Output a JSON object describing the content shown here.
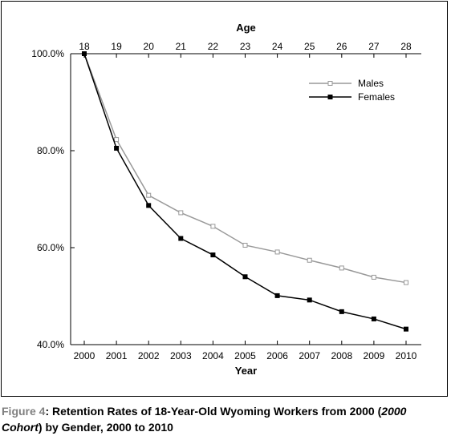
{
  "chart_data": {
    "type": "line",
    "title": "",
    "xlabel": "Year",
    "x2label": "Age",
    "ylabel": "",
    "x": [
      "2000",
      "2001",
      "2002",
      "2003",
      "2004",
      "2005",
      "2006",
      "2007",
      "2008",
      "2009",
      "2010"
    ],
    "x2": [
      "18",
      "19",
      "20",
      "21",
      "22",
      "23",
      "24",
      "25",
      "26",
      "27",
      "28"
    ],
    "yticks": [
      "40.0%",
      "60.0%",
      "80.0%",
      "100.0%"
    ],
    "ylim": [
      40,
      100
    ],
    "grid": false,
    "legend_position": "top-right",
    "series": [
      {
        "name": "Males",
        "values": [
          100.0,
          82.3,
          70.8,
          67.2,
          64.4,
          60.5,
          59.1,
          57.4,
          55.8,
          53.9,
          52.8
        ],
        "color": "#999999",
        "marker": "open-square"
      },
      {
        "name": "Females",
        "values": [
          100.0,
          80.5,
          68.7,
          61.9,
          58.5,
          54.0,
          50.1,
          49.2,
          46.8,
          45.3,
          43.2
        ],
        "color": "#000000",
        "marker": "filled-square"
      }
    ]
  },
  "caption": {
    "figure_label": "Figure 4",
    "text_1": ": Retention Rates of 18-Year-Old Wyoming Workers from 2000 (",
    "text_italic": "2000 Cohort",
    "text_2": ") by Gender, 2000 to 2010"
  }
}
